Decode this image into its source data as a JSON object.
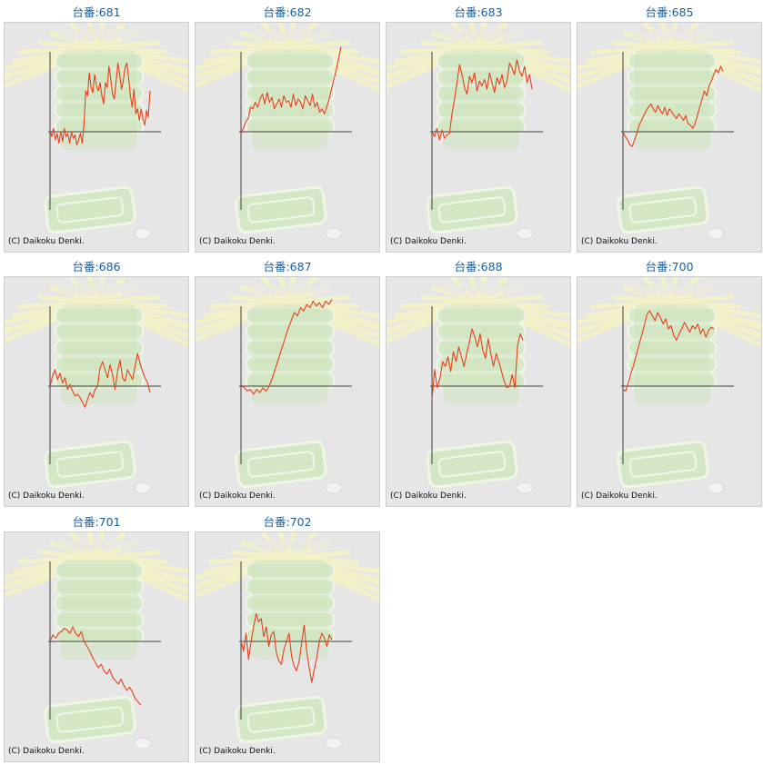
{
  "copyright": "(C) Daikoku Denki.",
  "colors": {
    "line": "#e8401c",
    "axis": "#404040",
    "title": "#1a5fa0",
    "panel": "#e6e6e6"
  },
  "machines": [
    {
      "title": "台番:681",
      "series": [
        2,
        -6,
        4,
        -10,
        -2,
        -14,
        0,
        -12,
        4,
        -6,
        -2,
        -14,
        0,
        -8,
        -4,
        -16,
        -10,
        -2,
        -14,
        8,
        50,
        44,
        72,
        54,
        48,
        70,
        56,
        50,
        60,
        44,
        34,
        60,
        54,
        80,
        64,
        46,
        40,
        62,
        84,
        70,
        52,
        62,
        78,
        84,
        66,
        44,
        30,
        52,
        22,
        28,
        14,
        28,
        16,
        8,
        26,
        18,
        50
      ],
      "note": ""
    },
    {
      "title": "台番:682",
      "series": [
        -2,
        4,
        12,
        16,
        30,
        28,
        36,
        30,
        40,
        46,
        34,
        48,
        36,
        42,
        28,
        34,
        40,
        30,
        44,
        36,
        38,
        30,
        46,
        32,
        40,
        36,
        28,
        44,
        38,
        32,
        46,
        30,
        36,
        24,
        28,
        22,
        30,
        40,
        52,
        64,
        76,
        90,
        104
      ],
      "note": ""
    },
    {
      "title": "台番:683",
      "series": [
        0,
        -6,
        4,
        -10,
        2,
        -8,
        -4,
        -2,
        22,
        40,
        60,
        82,
        70,
        54,
        46,
        68,
        60,
        72,
        50,
        62,
        56,
        64,
        52,
        72,
        60,
        48,
        66,
        58,
        70,
        54,
        62,
        84,
        78,
        70,
        88,
        74,
        68,
        80,
        60,
        70,
        52
      ],
      "note": ""
    },
    {
      "title": "台番:685",
      "series": [
        0,
        -6,
        -10,
        -16,
        -18,
        -10,
        -2,
        8,
        14,
        20,
        26,
        30,
        34,
        28,
        24,
        32,
        26,
        22,
        30,
        20,
        28,
        24,
        20,
        16,
        22,
        18,
        14,
        20,
        10,
        8,
        4,
        10,
        20,
        30,
        40,
        50,
        44,
        56,
        62,
        70,
        76,
        72,
        80,
        74
      ],
      "note": ""
    },
    {
      "title": "台番:686",
      "series": [
        0,
        12,
        20,
        8,
        16,
        4,
        10,
        -4,
        2,
        -6,
        -12,
        -10,
        -14,
        -20,
        -26,
        -16,
        -8,
        -14,
        -4,
        0,
        22,
        30,
        20,
        10,
        26,
        14,
        -4,
        18,
        32,
        10,
        6,
        20,
        14,
        8,
        24,
        40,
        28,
        18,
        10,
        4,
        -8
      ],
      "note": ""
    },
    {
      "title": "台番:687",
      "series": [
        2,
        -2,
        -6,
        -4,
        -10,
        -4,
        -8,
        -2,
        -6,
        0,
        10,
        22,
        34,
        46,
        58,
        70,
        80,
        90,
        86,
        96,
        92,
        100,
        96,
        104,
        98,
        102,
        96,
        104,
        100,
        106
      ],
      "note": ""
    },
    {
      "title": "台番:688",
      "series": [
        -16,
        20,
        -2,
        10,
        30,
        24,
        36,
        18,
        42,
        30,
        48,
        36,
        24,
        40,
        54,
        70,
        60,
        48,
        64,
        44,
        34,
        58,
        40,
        24,
        40,
        30,
        18,
        6,
        -2,
        0,
        14,
        -2,
        50,
        64,
        56
      ],
      "note": ""
    },
    {
      "title": "台番:700",
      "series": [
        -4,
        -6,
        4,
        16,
        26,
        38,
        50,
        62,
        74,
        88,
        92,
        86,
        80,
        90,
        84,
        76,
        82,
        70,
        74,
        62,
        56,
        64,
        70,
        78,
        72,
        66,
        74,
        70,
        76,
        64,
        70,
        60,
        68,
        72,
        70
      ],
      "note": ""
    },
    {
      "title": "台番:701",
      "series": [
        0,
        8,
        4,
        10,
        12,
        16,
        14,
        10,
        18,
        10,
        6,
        12,
        0,
        -6,
        -12,
        -20,
        -26,
        -32,
        -28,
        -36,
        -40,
        -34,
        -44,
        -48,
        -52,
        -46,
        -54,
        -60,
        -56,
        -62,
        -70,
        -74,
        -78
      ],
      "note": ""
    },
    {
      "title": "台番:702",
      "series": [
        0,
        -12,
        10,
        -22,
        0,
        18,
        34,
        24,
        28,
        6,
        18,
        -6,
        8,
        12,
        -14,
        -24,
        -28,
        -10,
        0,
        10,
        -18,
        -30,
        -36,
        -24,
        -2,
        20,
        -12,
        -32,
        -50,
        -34,
        -20,
        0,
        10,
        4,
        -6,
        8,
        2
      ],
      "note": ""
    }
  ]
}
